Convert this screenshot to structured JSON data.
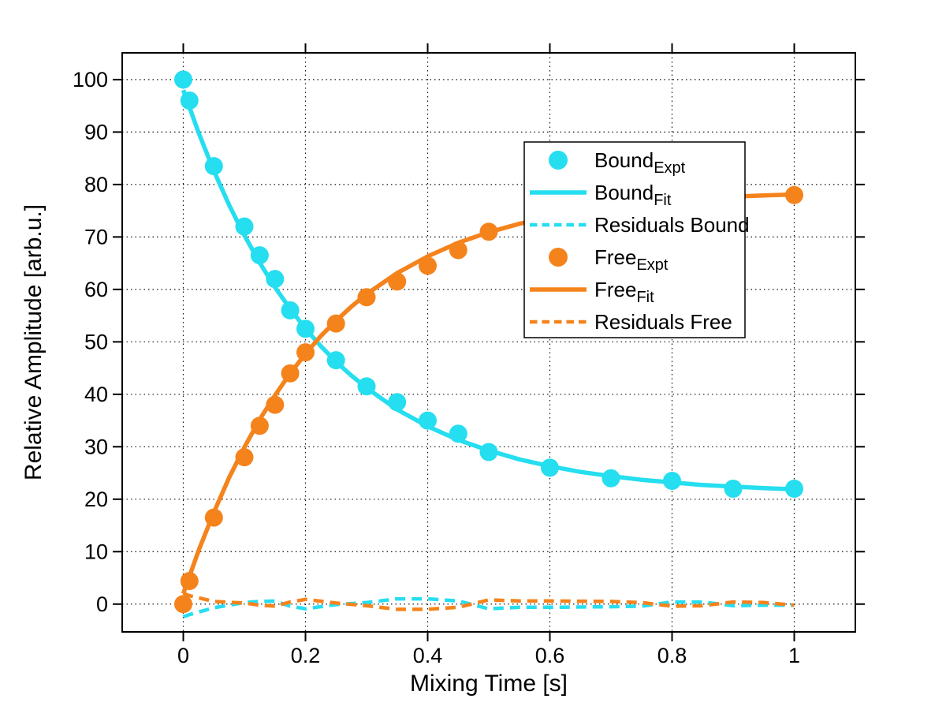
{
  "chart_data": {
    "type": "line",
    "title": "",
    "xlabel": "Mixing Time [s]",
    "ylabel": "Relative Amplitude [arb.u.]",
    "xlim": [
      -0.1,
      1.1
    ],
    "ylim": [
      -5.3,
      105.1
    ],
    "xticks": [
      0,
      0.2,
      0.4,
      0.6,
      0.8,
      1
    ],
    "xtick_labels": [
      "0",
      "0.2",
      "0.4",
      "0.6",
      "0.8",
      "1"
    ],
    "yticks": [
      0,
      10,
      20,
      30,
      40,
      50,
      60,
      70,
      80,
      90,
      100
    ],
    "ytick_labels": [
      "0",
      "10",
      "20",
      "30",
      "40",
      "50",
      "60",
      "70",
      "80",
      "90",
      "100"
    ],
    "grid": "dotted",
    "legend_position": "upper-right-inside",
    "colors": {
      "bound": "#25DEEF",
      "free": "#F5831C"
    },
    "series": [
      {
        "name": "Bound_Expt",
        "style": "scatter",
        "color": "bound",
        "x": [
          0,
          0.01,
          0.05,
          0.1,
          0.125,
          0.15,
          0.175,
          0.2,
          0.25,
          0.3,
          0.35,
          0.4,
          0.45,
          0.5,
          0.6,
          0.7,
          0.8,
          0.9,
          1.0
        ],
        "y": [
          100,
          96,
          83.5,
          72,
          66.5,
          62,
          56,
          52.5,
          46.5,
          41.5,
          38.5,
          35,
          32.5,
          29,
          26,
          24,
          23.5,
          22,
          22
        ]
      },
      {
        "name": "Bound_Fit",
        "style": "line",
        "color": "bound",
        "x": [
          0,
          0.025,
          0.05,
          0.075,
          0.1,
          0.125,
          0.15,
          0.175,
          0.2,
          0.225,
          0.25,
          0.275,
          0.3,
          0.35,
          0.4,
          0.45,
          0.5,
          0.55,
          0.6,
          0.65,
          0.7,
          0.75,
          0.8,
          0.85,
          0.9,
          0.95,
          1.0
        ],
        "y": [
          98,
          89.9,
          82.6,
          76.1,
          70.3,
          65.1,
          60.4,
          56.3,
          52.5,
          49.2,
          46.2,
          43.6,
          41.2,
          37.1,
          33.9,
          31.3,
          29.3,
          27.6,
          26.3,
          25.2,
          24.4,
          23.7,
          23.2,
          22.7,
          22.4,
          22.1,
          21.9
        ]
      },
      {
        "name": "Residuals Bound",
        "style": "dashed",
        "color": "bound",
        "x": [
          0,
          0.01,
          0.05,
          0.1,
          0.125,
          0.15,
          0.175,
          0.2,
          0.25,
          0.3,
          0.35,
          0.4,
          0.45,
          0.5,
          0.55,
          0.6,
          0.7,
          0.75,
          0.8,
          0.85,
          0.9,
          0.95,
          1.0
        ],
        "y": [
          -2.4,
          -2.0,
          -0.7,
          0.3,
          0.5,
          0.6,
          -0.4,
          -0.9,
          -0.1,
          0.3,
          1.0,
          1.0,
          0.6,
          -0.9,
          -0.6,
          -0.6,
          -0.5,
          -0.4,
          0.4,
          0.4,
          -0.3,
          -0.2,
          -0.2
        ]
      },
      {
        "name": "Free_Expt",
        "style": "scatter",
        "color": "free",
        "x": [
          0,
          0.01,
          0.05,
          0.1,
          0.125,
          0.15,
          0.175,
          0.2,
          0.25,
          0.3,
          0.35,
          0.4,
          0.45,
          0.5,
          1.0
        ],
        "y": [
          0,
          4.4,
          16.5,
          28,
          34,
          38,
          44,
          48,
          53.5,
          58.5,
          61.5,
          64.5,
          67.5,
          71,
          78
        ]
      },
      {
        "name": "Free_Fit",
        "style": "line",
        "color": "free",
        "x": [
          0,
          0.025,
          0.05,
          0.075,
          0.1,
          0.125,
          0.15,
          0.175,
          0.2,
          0.225,
          0.25,
          0.275,
          0.3,
          0.35,
          0.4,
          0.45,
          0.5,
          0.55,
          0.6,
          0.65,
          0.7,
          0.75,
          0.8,
          0.85,
          0.9,
          0.95,
          1.0
        ],
        "y": [
          2,
          10.2,
          17.5,
          24.1,
          29.9,
          35.2,
          39.8,
          44,
          47.7,
          51.1,
          54,
          56.7,
          59.1,
          63.1,
          66.3,
          68.9,
          70.9,
          72.5,
          73.8,
          74.9,
          75.7,
          76.4,
          76.9,
          77.3,
          77.7,
          77.9,
          78.1
        ]
      },
      {
        "name": "Residuals Free",
        "style": "dashed",
        "color": "free",
        "x": [
          0,
          0.01,
          0.05,
          0.1,
          0.125,
          0.15,
          0.175,
          0.2,
          0.25,
          0.3,
          0.35,
          0.4,
          0.45,
          0.5,
          0.55,
          0.6,
          0.7,
          0.75,
          0.8,
          0.85,
          0.9,
          0.95,
          1.0
        ],
        "y": [
          2.1,
          1.6,
          0.5,
          0.2,
          -0.2,
          -0.4,
          0.4,
          0.9,
          0.2,
          -0.3,
          -1.0,
          -1.0,
          -0.6,
          0.8,
          0.6,
          0.6,
          0.5,
          0.3,
          -0.4,
          -0.3,
          0.4,
          0.3,
          -0.2
        ]
      }
    ],
    "legend": [
      {
        "label": "Bound",
        "sub": "Expt",
        "swatch": "marker",
        "color": "bound"
      },
      {
        "label": "Bound",
        "sub": "Fit",
        "swatch": "line",
        "color": "bound"
      },
      {
        "label": "Residuals Bound",
        "sub": "",
        "swatch": "dashed",
        "color": "bound"
      },
      {
        "label": "Free",
        "sub": "Expt",
        "swatch": "marker",
        "color": "free"
      },
      {
        "label": "Free",
        "sub": "Fit",
        "swatch": "line",
        "color": "free"
      },
      {
        "label": "Residuals Free",
        "sub": "",
        "swatch": "dashed",
        "color": "free"
      }
    ]
  }
}
